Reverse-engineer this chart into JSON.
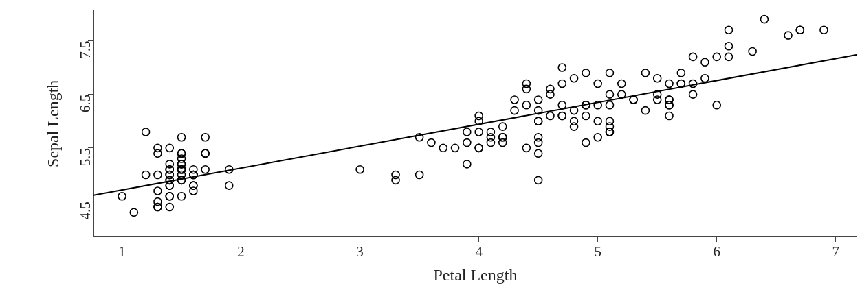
{
  "chart_data": {
    "type": "scatter",
    "xlabel": "Petal Length",
    "ylabel": "Sepal Length",
    "xlim": [
      0.76,
      7.18
    ],
    "ylim": [
      3.85,
      8.06
    ],
    "xticks": [
      1,
      2,
      3,
      4,
      5,
      6,
      7
    ],
    "yticks": [
      4.5,
      5.5,
      6.5,
      7.5
    ],
    "grid": false,
    "marker": "circle",
    "series": [
      {
        "color": "#000000",
        "x": [
          1.4,
          1.4,
          1.3,
          1.5,
          1.4,
          1.7,
          1.4,
          1.5,
          1.4,
          1.5,
          1.5,
          1.6,
          1.4,
          1.1,
          1.2,
          1.5,
          1.3,
          1.4,
          1.7,
          1.5,
          1.7,
          1.5,
          1.0,
          1.7,
          1.9,
          1.6,
          1.6,
          1.5,
          1.4,
          1.6,
          1.6,
          1.5,
          1.5,
          1.4,
          1.5,
          1.2,
          1.3,
          1.4,
          1.3,
          1.5,
          1.3,
          1.3,
          1.3,
          1.6,
          1.9,
          1.4,
          1.6,
          1.4,
          1.5,
          1.4,
          4.7,
          4.5,
          4.9,
          4.0,
          4.6,
          4.5,
          4.7,
          3.3,
          4.6,
          3.9,
          3.5,
          4.2,
          4.0,
          4.7,
          3.6,
          4.4,
          4.5,
          4.1,
          4.5,
          3.9,
          4.8,
          4.0,
          4.9,
          4.7,
          4.3,
          4.4,
          4.8,
          5.0,
          4.5,
          3.5,
          3.8,
          3.7,
          3.9,
          5.1,
          4.5,
          4.5,
          4.7,
          4.4,
          4.1,
          4.0,
          4.4,
          4.6,
          4.0,
          3.3,
          4.2,
          4.2,
          4.2,
          4.3,
          3.0,
          4.1,
          6.0,
          5.1,
          5.9,
          5.6,
          5.8,
          6.6,
          4.5,
          6.3,
          5.8,
          6.1,
          5.1,
          5.3,
          5.5,
          5.0,
          5.1,
          5.3,
          5.5,
          6.7,
          6.9,
          5.0,
          5.7,
          4.9,
          6.7,
          4.9,
          5.7,
          6.0,
          4.8,
          4.9,
          5.6,
          5.8,
          6.1,
          6.4,
          5.6,
          5.1,
          5.6,
          6.1,
          5.6,
          5.5,
          4.8,
          5.4,
          5.6,
          5.1,
          5.1,
          5.9,
          5.7,
          5.2,
          5.0,
          5.2,
          5.4,
          5.1
        ],
        "values": [
          5.1,
          4.9,
          4.7,
          4.6,
          5.0,
          5.4,
          4.6,
          5.0,
          4.4,
          4.9,
          5.4,
          4.8,
          4.8,
          4.3,
          5.8,
          5.7,
          5.4,
          5.1,
          5.7,
          5.1,
          5.4,
          5.1,
          4.6,
          5.1,
          4.8,
          5.0,
          5.0,
          5.2,
          5.2,
          4.7,
          4.8,
          5.4,
          5.2,
          5.5,
          4.9,
          5.0,
          5.5,
          4.9,
          4.4,
          5.1,
          5.0,
          4.5,
          4.4,
          5.0,
          5.1,
          4.8,
          5.1,
          4.6,
          5.3,
          5.0,
          7.0,
          6.4,
          6.9,
          5.5,
          6.5,
          5.7,
          6.3,
          4.9,
          6.6,
          5.2,
          5.0,
          5.9,
          6.0,
          6.1,
          5.6,
          6.7,
          5.6,
          5.8,
          6.2,
          5.6,
          5.9,
          6.1,
          6.3,
          6.1,
          6.4,
          6.6,
          6.8,
          6.7,
          6.0,
          5.7,
          5.5,
          5.5,
          5.8,
          6.0,
          5.4,
          6.0,
          6.7,
          6.3,
          5.6,
          5.5,
          5.5,
          6.1,
          5.8,
          5.0,
          5.6,
          5.7,
          5.7,
          6.2,
          5.1,
          5.7,
          6.3,
          5.8,
          7.1,
          6.3,
          6.5,
          7.6,
          4.9,
          7.3,
          6.7,
          7.2,
          6.5,
          6.4,
          6.8,
          5.7,
          5.8,
          6.4,
          6.5,
          7.7,
          7.7,
          6.0,
          6.9,
          5.6,
          7.7,
          6.3,
          6.7,
          7.2,
          6.2,
          6.1,
          6.4,
          7.2,
          7.4,
          7.9,
          6.4,
          6.3,
          6.1,
          7.7,
          6.3,
          6.4,
          6.0,
          6.9,
          6.7,
          6.9,
          5.8,
          6.8,
          6.7,
          6.7,
          6.3,
          6.5,
          6.2,
          5.9
        ]
      },
      {
        "type": "line",
        "color": "#000000",
        "x": [
          0.76,
          7.18
        ],
        "values": [
          4.62,
          7.24
        ],
        "marker": "none",
        "line_style": "solid"
      }
    ]
  }
}
